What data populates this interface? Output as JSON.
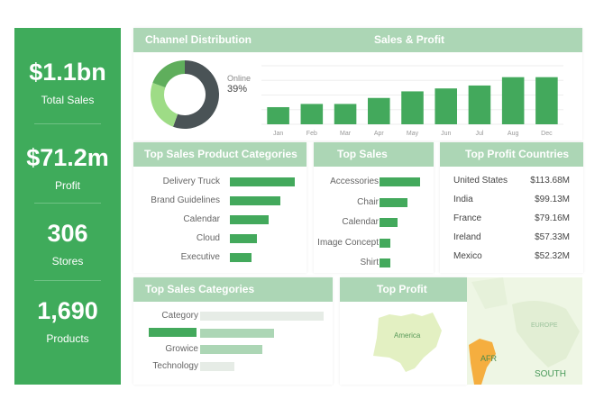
{
  "kpis": [
    {
      "value": "$1.1bn",
      "label": "Total Sales"
    },
    {
      "value": "$71.2m",
      "label": "Profit"
    },
    {
      "value": "306",
      "label": "Stores"
    },
    {
      "value": "1,690",
      "label": "Products"
    }
  ],
  "channel": {
    "title": "Channel Distribution",
    "legend_label": "Online",
    "legend_value": "39%",
    "colors": [
      "#4a5356",
      "#9edc86",
      "#5fae5c"
    ],
    "segments_deg": [
      200,
      90,
      70
    ]
  },
  "sales_profit": {
    "title": "Sales & Profit"
  },
  "chart_data": {
    "type": "bar",
    "categories": [
      "Jan",
      "Feb",
      "Mar",
      "Apr",
      "May",
      "Jun",
      "Jul",
      "Aug",
      "Dec"
    ],
    "values": [
      1.17,
      1.39,
      1.39,
      1.8,
      2.25,
      2.45,
      2.65,
      3.22,
      3.22
    ],
    "ylim": [
      0,
      4
    ],
    "grid": true,
    "color": "#43a95c"
  },
  "product_categories": {
    "title": "Top Sales Product Categories",
    "items": [
      {
        "label": "Delivery Truck",
        "value": 72
      },
      {
        "label": "Brand Guidelines",
        "value": 56
      },
      {
        "label": "Calendar",
        "value": 43
      },
      {
        "label": "Cloud",
        "value": 30
      },
      {
        "label": "Executive",
        "value": 24
      }
    ]
  },
  "top_sales": {
    "title": "Top Sales",
    "items": [
      {
        "label": "Accessories",
        "value": 45
      },
      {
        "label": "Chair",
        "value": 31
      },
      {
        "label": "Calendar",
        "value": 20
      },
      {
        "label": "Image Concept",
        "value": 12
      },
      {
        "label": "Shirt",
        "value": 12
      }
    ]
  },
  "profit_countries": {
    "title": "Top Profit Countries",
    "items": [
      {
        "country": "United States",
        "value": "$113.68M"
      },
      {
        "country": "India",
        "value": "$99.13M"
      },
      {
        "country": "France",
        "value": "$79.16M"
      },
      {
        "country": "Ireland",
        "value": "$57.33M"
      },
      {
        "country": "Mexico",
        "value": "$52.32M"
      }
    ]
  },
  "sales_categories": {
    "title": "Top Sales Categories",
    "items": [
      {
        "label": "Category",
        "value": 100
      },
      {
        "label": "",
        "value": 60
      },
      {
        "label": "Growice",
        "value": 50
      },
      {
        "label": "Technology",
        "value": 28
      }
    ]
  },
  "top_profit": {
    "title": "Top Profit",
    "map_label": "America"
  },
  "world_map": {
    "labels": [
      "EUROPE",
      "AFR",
      "SOUTH"
    ]
  }
}
